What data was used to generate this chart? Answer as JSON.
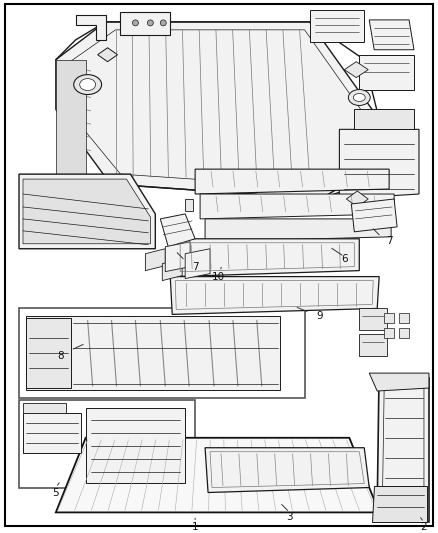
{
  "bg_color": "#ffffff",
  "border_color": "#000000",
  "line_color": "#1a1a1a",
  "label_color": "#111111",
  "fig_width": 4.38,
  "fig_height": 5.33,
  "dpi": 100,
  "gray_fill": "#e8e8e8",
  "light_fill": "#f2f2f2",
  "white_fill": "#ffffff",
  "hatch_color": "#888888"
}
